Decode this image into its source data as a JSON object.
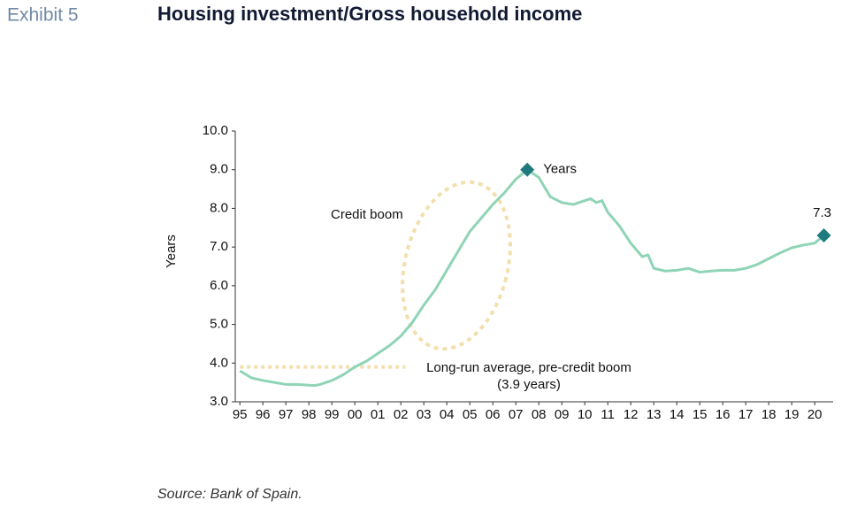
{
  "chart_data": {
    "type": "line",
    "exhibit": "Exhibit 5",
    "title": "Housing investment/Gross household income",
    "y_label": "Years",
    "source": "Source: Bank of Spain.",
    "x": [
      1995,
      1995.5,
      1996,
      1996.5,
      1997,
      1997.5,
      1998,
      1998.25,
      1998.5,
      1999,
      1999.5,
      2000,
      2000.5,
      2001,
      2001.5,
      2002,
      2002.5,
      2003,
      2003.5,
      2004,
      2004.5,
      2005,
      2005.5,
      2006,
      2006.5,
      2007,
      2007.5,
      2008,
      2008.5,
      2009,
      2009.5,
      2010,
      2010.25,
      2010.5,
      2010.75,
      2011,
      2011.5,
      2012,
      2012.5,
      2012.75,
      2013,
      2013.5,
      2014,
      2014.5,
      2015,
      2015.5,
      2016,
      2016.5,
      2017,
      2017.5,
      2018,
      2018.5,
      2019,
      2019.5,
      2020,
      2020.4
    ],
    "series": [
      {
        "name": "Years",
        "color": "#8fd4b6",
        "values": [
          3.8,
          3.62,
          3.55,
          3.5,
          3.45,
          3.45,
          3.43,
          3.42,
          3.45,
          3.55,
          3.7,
          3.9,
          4.05,
          4.25,
          4.45,
          4.7,
          5.05,
          5.5,
          5.9,
          6.4,
          6.9,
          7.4,
          7.75,
          8.1,
          8.4,
          8.75,
          9.0,
          8.8,
          8.3,
          8.15,
          8.1,
          8.2,
          8.25,
          8.15,
          8.2,
          7.9,
          7.55,
          7.1,
          6.75,
          6.8,
          6.45,
          6.38,
          6.4,
          6.45,
          6.35,
          6.38,
          6.4,
          6.4,
          6.45,
          6.55,
          6.7,
          6.85,
          6.98,
          7.05,
          7.1,
          7.3
        ]
      }
    ],
    "markers": [
      {
        "x": 2007.5,
        "y": 9.0,
        "label": "Years",
        "color": "#1f7a80"
      },
      {
        "x": 2020.4,
        "y": 7.3,
        "label": "7.3",
        "color": "#1f7a80"
      }
    ],
    "reference_line": {
      "value": 3.9,
      "x": [
        1995,
        2002.2
      ],
      "label": "Long-run average, pre-credit boom (3.9 years)",
      "color": "#f3dfae"
    },
    "credit_boom": {
      "label": "Credit boom",
      "color": "#f3dfae"
    },
    "xlim": [
      1994.8,
      2020.8
    ],
    "xticks": [
      {
        "value": 1995,
        "label": "95"
      },
      {
        "value": 1996,
        "label": "96"
      },
      {
        "value": 1997,
        "label": "97"
      },
      {
        "value": 1998,
        "label": "98"
      },
      {
        "value": 1999,
        "label": "99"
      },
      {
        "value": 2000,
        "label": "00"
      },
      {
        "value": 2001,
        "label": "01"
      },
      {
        "value": 2002,
        "label": "02"
      },
      {
        "value": 2003,
        "label": "03"
      },
      {
        "value": 2004,
        "label": "04"
      },
      {
        "value": 2005,
        "label": "05"
      },
      {
        "value": 2006,
        "label": "06"
      },
      {
        "value": 2007,
        "label": "07"
      },
      {
        "value": 2008,
        "label": "08"
      },
      {
        "value": 2009,
        "label": "09"
      },
      {
        "value": 2010,
        "label": "10"
      },
      {
        "value": 2011,
        "label": "11"
      },
      {
        "value": 2012,
        "label": "12"
      },
      {
        "value": 2013,
        "label": "13"
      },
      {
        "value": 2014,
        "label": "14"
      },
      {
        "value": 2015,
        "label": "15"
      },
      {
        "value": 2016,
        "label": "16"
      },
      {
        "value": 2017,
        "label": "17"
      },
      {
        "value": 2018,
        "label": "18"
      },
      {
        "value": 2019,
        "label": "19"
      },
      {
        "value": 2020,
        "label": "20"
      }
    ],
    "ylim": [
      3,
      10
    ],
    "yticks": [
      {
        "value": 3,
        "label": "3.0"
      },
      {
        "value": 4,
        "label": "4.0"
      },
      {
        "value": 5,
        "label": "5.0"
      },
      {
        "value": 6,
        "label": "6.0"
      },
      {
        "value": 7,
        "label": "7.0"
      },
      {
        "value": 8,
        "label": "8.0"
      },
      {
        "value": 9,
        "label": "9.0"
      },
      {
        "value": 10,
        "label": "10.0"
      }
    ]
  }
}
